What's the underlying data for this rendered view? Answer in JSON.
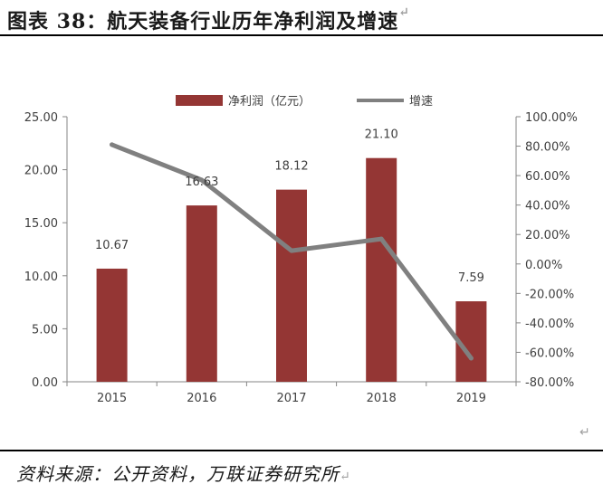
{
  "page": {
    "title": "图表 38：航天装备行业历年净利润及增速",
    "title_mark": "↵",
    "source": "资料来源：公开资料，万联证券研究所",
    "source_mark": "↵",
    "corner_mark": "↵"
  },
  "chart_data": {
    "type": "bar",
    "categories": [
      "2015",
      "2016",
      "2017",
      "2018",
      "2019"
    ],
    "series": [
      {
        "name": "净利润（亿元）",
        "chart": "bar",
        "axis": "left",
        "color": "#943634",
        "values": [
          10.67,
          16.63,
          18.12,
          21.1,
          7.59
        ],
        "labels": [
          "10.67",
          "16.63",
          "18.12",
          "21.10",
          "7.59"
        ]
      },
      {
        "name": "增速",
        "chart": "line",
        "axis": "right",
        "color": "#808080",
        "values": [
          81,
          57,
          9,
          17,
          -64
        ]
      }
    ],
    "left_axis": {
      "ylim": [
        0,
        25
      ],
      "ticks": [
        0,
        5,
        10,
        15,
        20,
        25
      ],
      "tick_labels": [
        "0.00",
        "5.00",
        "10.00",
        "15.00",
        "20.00",
        "25.00"
      ]
    },
    "right_axis": {
      "ylim": [
        -80,
        100
      ],
      "ticks": [
        -80,
        -60,
        -40,
        -20,
        0,
        20,
        40,
        60,
        80,
        100
      ],
      "tick_labels": [
        "-80.00%",
        "-60.00%",
        "-40.00%",
        "-20.00%",
        "0.00%",
        "20.00%",
        "40.00%",
        "60.00%",
        "80.00%",
        "100.00%"
      ]
    },
    "legend": {
      "position": "top-center"
    },
    "grid": false
  }
}
